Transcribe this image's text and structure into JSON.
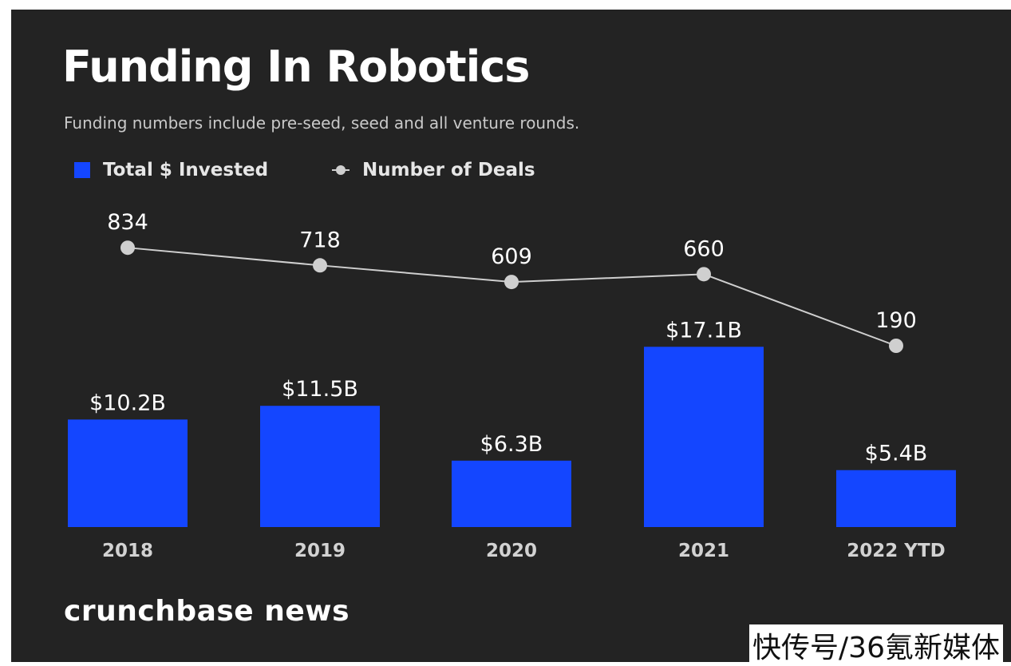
{
  "header": {
    "title": "Funding In Robotics",
    "subtitle": "Funding numbers include pre-seed, seed and all venture rounds."
  },
  "legend": {
    "bars_label": "Total $ Invested",
    "line_label": "Number of Deals"
  },
  "colors": {
    "bar": "#1446ff",
    "line": "#cfcfcf",
    "background": "#232323"
  },
  "chart_data": {
    "type": "bar",
    "title": "Funding In Robotics",
    "categories": [
      "2018",
      "2019",
      "2020",
      "2021",
      "2022 YTD"
    ],
    "series": [
      {
        "name": "Total $ Invested",
        "type": "bar",
        "unit": "$B",
        "values": [
          10.2,
          11.5,
          6.3,
          17.1,
          5.4
        ],
        "labels": [
          "$10.2B",
          "$11.5B",
          "$6.3B",
          "$17.1B",
          "$5.4B"
        ]
      },
      {
        "name": "Number of Deals",
        "type": "line",
        "values": [
          834,
          718,
          609,
          660,
          190
        ],
        "labels": [
          "834",
          "718",
          "609",
          "660",
          "190"
        ]
      }
    ],
    "xlabel": "",
    "ylabel": "",
    "grid": false,
    "legend_position": "top-left"
  },
  "footer": {
    "brand": "crunchbase news",
    "watermark": "快传号/36氪新媒体"
  }
}
